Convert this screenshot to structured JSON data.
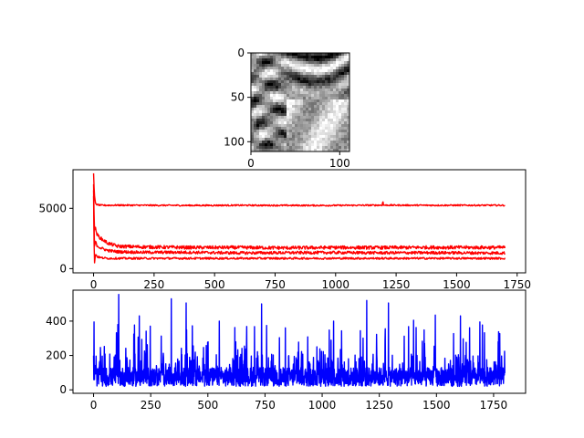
{
  "chart_data": [
    {
      "type": "heatmap",
      "colormap": "gray",
      "xlim": [
        0,
        111
      ],
      "ylim": [
        111,
        0
      ],
      "xticks": [
        0,
        100
      ],
      "yticks": [
        0,
        50,
        100
      ],
      "xtick_labels": [
        "0",
        "100"
      ],
      "ytick_labels": [
        "0",
        "50",
        "100"
      ]
    },
    {
      "type": "line",
      "color": "#ff0000",
      "xlim": [
        -85,
        1785
      ],
      "ylim": [
        -350,
        8200
      ],
      "xticks": [
        0,
        250,
        500,
        750,
        1000,
        1250,
        1500,
        1750
      ],
      "yticks": [
        0,
        5000
      ],
      "xtick_labels": [
        "0",
        "250",
        "500",
        "750",
        "1000",
        "1250",
        "1500",
        "1750"
      ],
      "ytick_labels": [
        "0",
        "5000"
      ],
      "series": [
        {
          "x": [
            0,
            3,
            8,
            15,
            30,
            60,
            100,
            200,
            400,
            600,
            800,
            1000,
            1200,
            1400,
            1600,
            1700
          ],
          "values": [
            7900,
            6200,
            5400,
            5300,
            5250,
            5250,
            5260,
            5250,
            5240,
            5250,
            5240,
            5240,
            5260,
            5250,
            5250,
            5250
          ]
        },
        {
          "x": [
            0,
            3,
            8,
            15,
            30,
            60,
            100,
            200,
            400,
            600,
            800,
            1000,
            1200,
            1400,
            1600,
            1700
          ],
          "values": [
            7000,
            3200,
            3300,
            2800,
            2500,
            2100,
            1850,
            1800,
            1750,
            1750,
            1720,
            1750,
            1740,
            1760,
            1750,
            1750
          ]
        },
        {
          "x": [
            0,
            3,
            8,
            15,
            30,
            60,
            100,
            200,
            400,
            600,
            800,
            1000,
            1200,
            1400,
            1600,
            1700
          ],
          "values": [
            6500,
            1800,
            2200,
            1900,
            1700,
            1500,
            1400,
            1350,
            1350,
            1300,
            1320,
            1330,
            1310,
            1320,
            1300,
            1300
          ]
        },
        {
          "x": [
            0,
            3,
            8,
            15,
            30,
            60,
            100,
            200,
            400,
            600,
            800,
            1000,
            1200,
            1400,
            1600,
            1700
          ],
          "values": [
            6000,
            300,
            1200,
            1000,
            900,
            850,
            850,
            850,
            850,
            850,
            850,
            850,
            850,
            850,
            850,
            850
          ]
        }
      ]
    },
    {
      "type": "line",
      "color": "#0000ff",
      "xlim": [
        -90,
        1890
      ],
      "ylim": [
        -20,
        580
      ],
      "xticks": [
        0,
        250,
        500,
        750,
        1000,
        1250,
        1500,
        1750
      ],
      "yticks": [
        0,
        200,
        400
      ],
      "xtick_labels": [
        "0",
        "250",
        "500",
        "750",
        "1000",
        "1250",
        "1500",
        "1750"
      ],
      "ytick_labels": [
        "0",
        "200",
        "400"
      ],
      "n_points": 1800,
      "baseline_range": [
        20,
        130
      ],
      "peaks": [
        {
          "x": 2,
          "y": 395
        },
        {
          "x": 110,
          "y": 555
        },
        {
          "x": 200,
          "y": 430
        },
        {
          "x": 340,
          "y": 530
        },
        {
          "x": 405,
          "y": 505
        },
        {
          "x": 550,
          "y": 400
        },
        {
          "x": 735,
          "y": 500
        },
        {
          "x": 1050,
          "y": 400
        },
        {
          "x": 1195,
          "y": 520
        },
        {
          "x": 1290,
          "y": 505
        },
        {
          "x": 1400,
          "y": 405
        },
        {
          "x": 1495,
          "y": 435
        },
        {
          "x": 1605,
          "y": 430
        },
        {
          "x": 1690,
          "y": 395
        }
      ]
    }
  ]
}
